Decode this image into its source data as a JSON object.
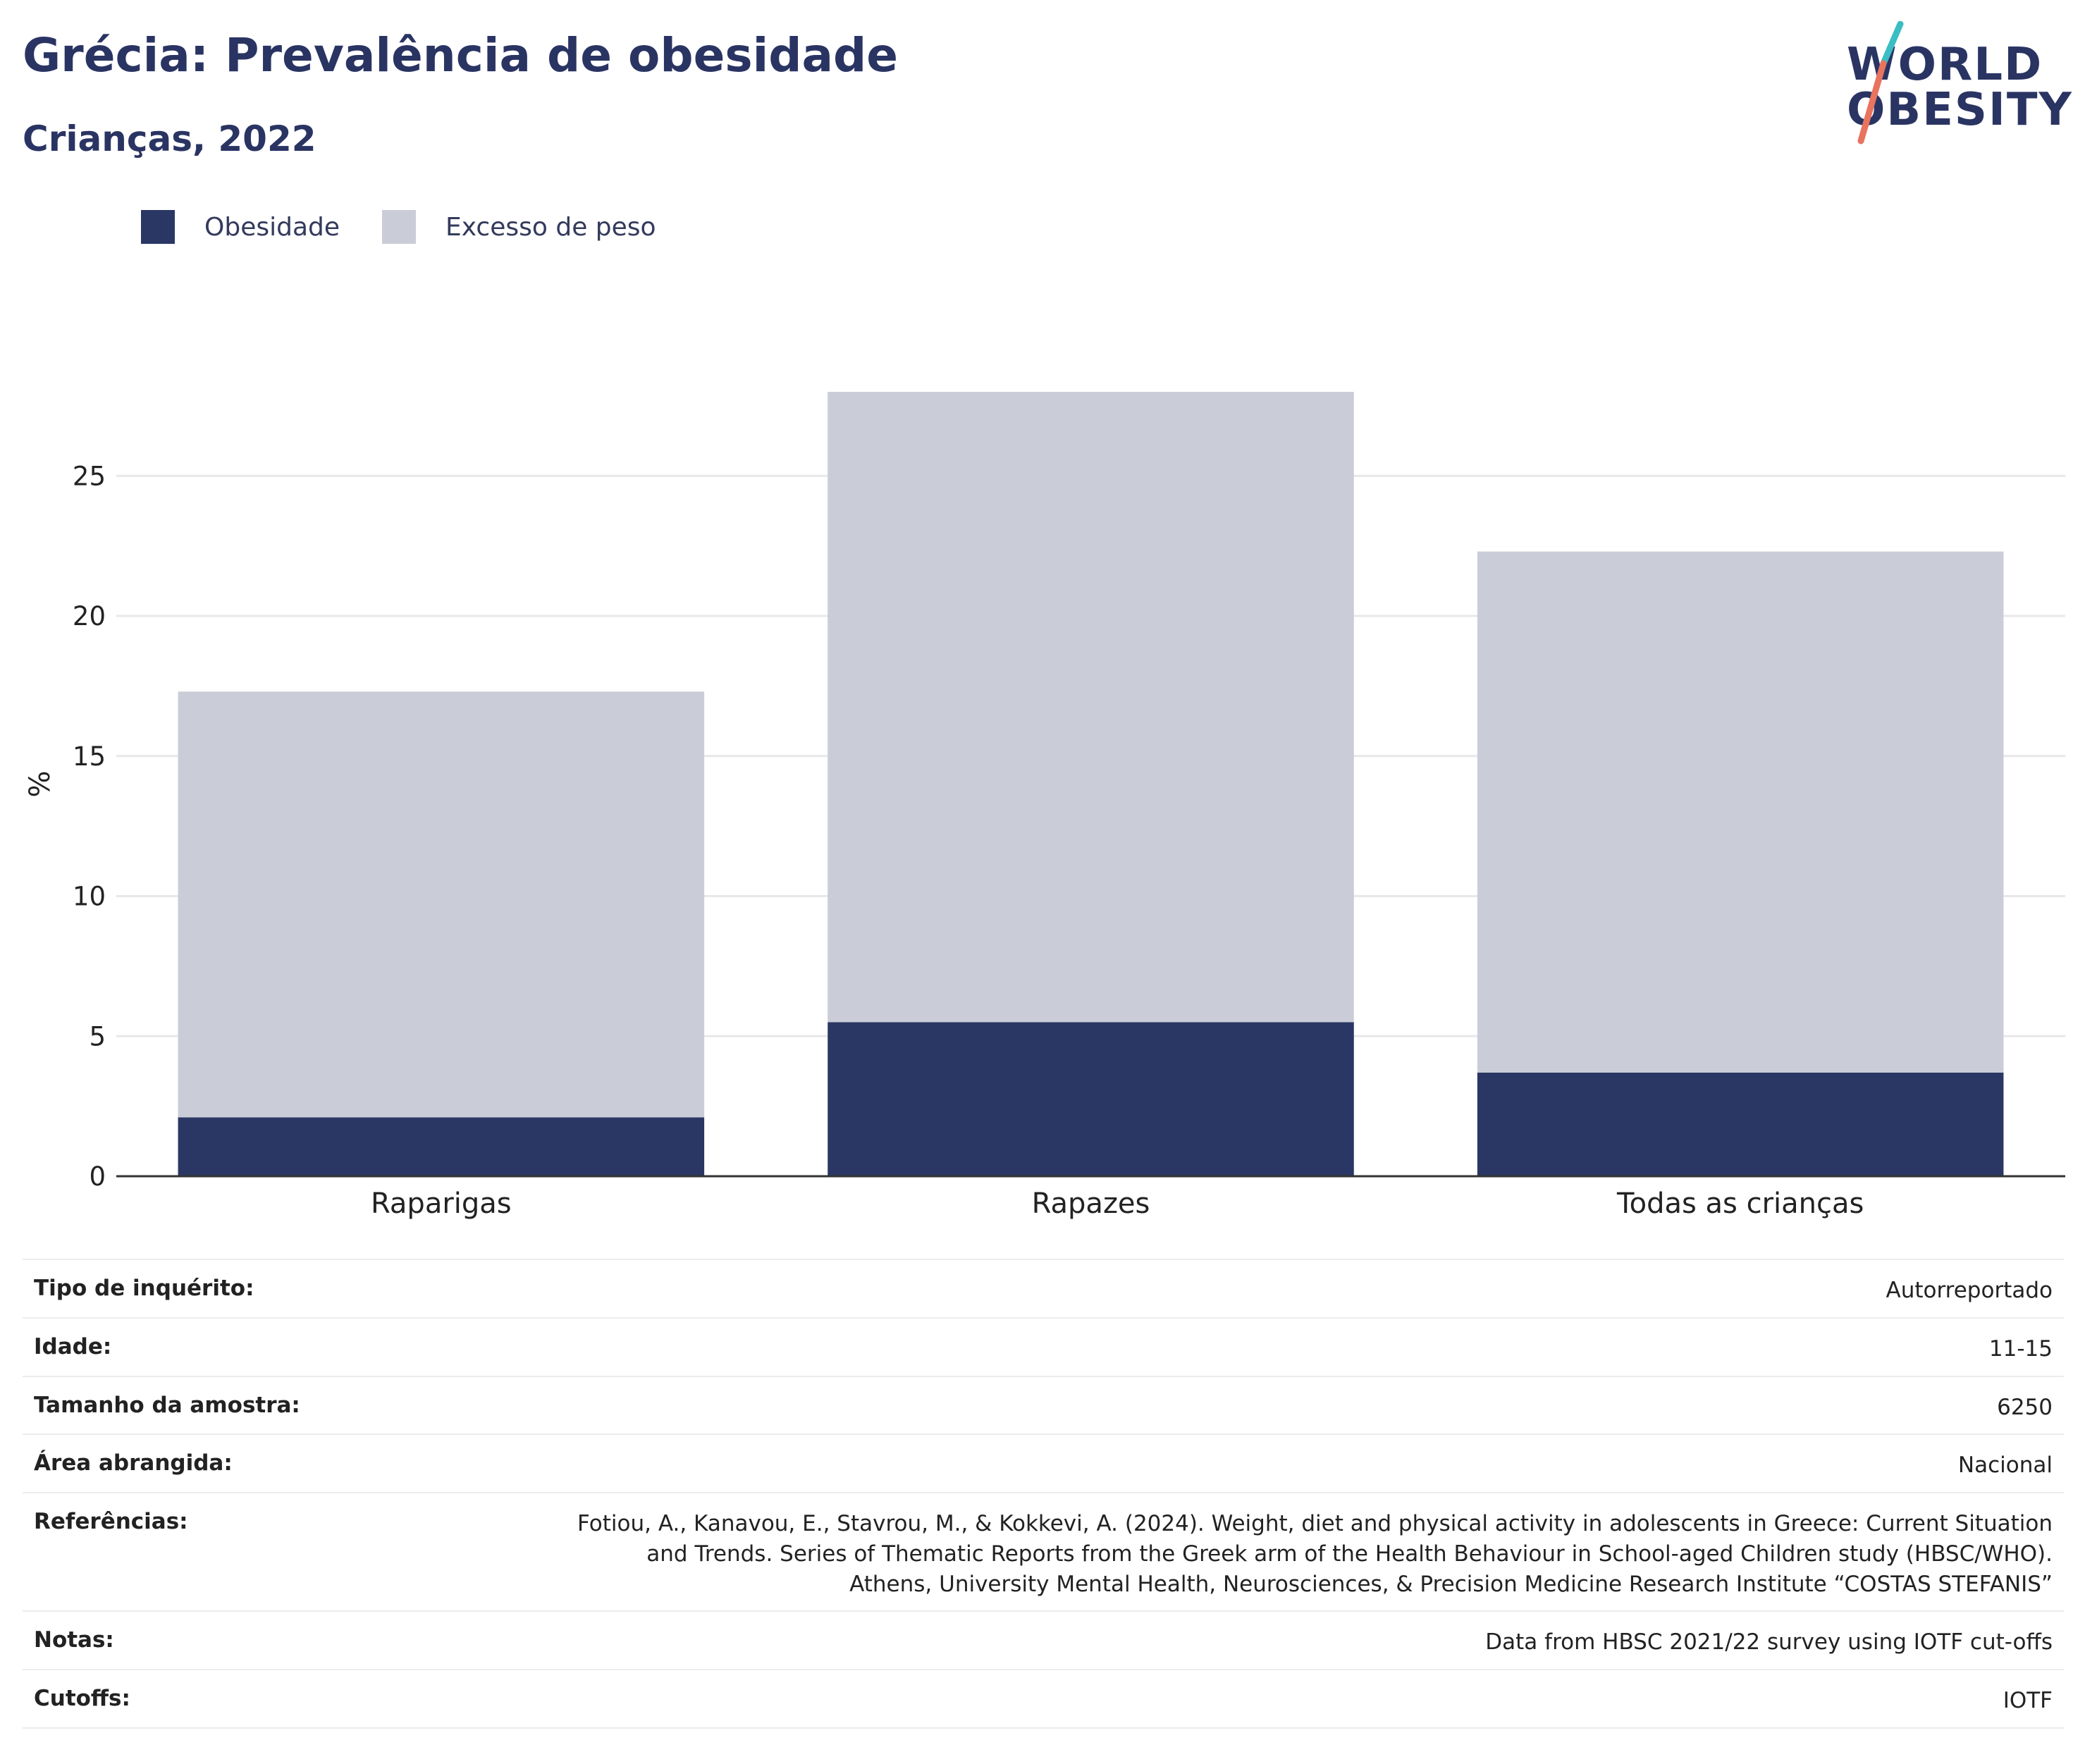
{
  "header": {
    "title": "Grécia: Prevalência de obesidade",
    "subtitle": "Crianças, 2022"
  },
  "logo": {
    "line1": "WORLD",
    "line2": "OBESITY",
    "slash_colors": [
      "#3bbdc4",
      "#e8735e"
    ]
  },
  "legend": [
    {
      "label": "Obesidade",
      "color": "#2a3764"
    },
    {
      "label": "Excesso de peso",
      "color": "#cacdd8"
    }
  ],
  "chart_data": {
    "type": "bar",
    "stacked": true,
    "categories": [
      "Raparigas",
      "Rapazes",
      "Todas as crianças"
    ],
    "series": [
      {
        "name": "Obesidade",
        "color": "#2a3764",
        "values": [
          2.1,
          5.5,
          3.7
        ]
      },
      {
        "name": "Excesso de peso",
        "color": "#cacdd8",
        "values": [
          15.2,
          22.5,
          18.6
        ]
      }
    ],
    "ylabel": "%",
    "yticks": [
      0,
      5,
      10,
      15,
      20,
      25
    ],
    "ylim": [
      0,
      28
    ],
    "grid": true,
    "legend_position": "top-left"
  },
  "info_table": [
    {
      "label": "Tipo de inquérito:",
      "value": "Autorreportado"
    },
    {
      "label": "Idade:",
      "value": "11-15"
    },
    {
      "label": "Tamanho da amostra:",
      "value": "6250"
    },
    {
      "label": "Área abrangida:",
      "value": "Nacional"
    },
    {
      "label": "Referências:",
      "value": "Fotiou, A., Kanavou, E., Stavrou, M., & Kokkevi, A. (2024). Weight, diet and physical activity in adolescents in Greece: Current Situation and Trends. Series of Thematic Reports from the Greek arm of the Health Behaviour in School-aged Children study (HBSC/WHO). Athens, University Mental Health, Neurosciences, & Precision Medicine Research Institute “COSTAS STEFANIS”"
    },
    {
      "label": "Notas:",
      "value": "Data from HBSC 2021/22 survey using IOTF cut-offs"
    },
    {
      "label": "Cutoffs:",
      "value": "IOTF"
    }
  ]
}
